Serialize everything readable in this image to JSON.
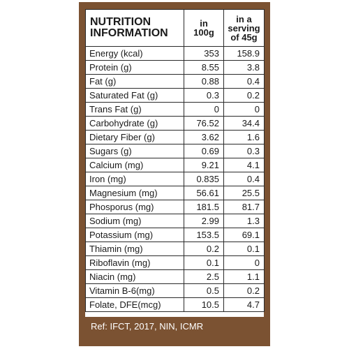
{
  "header": {
    "title_line1": "NUTRITION",
    "title_line2": "INFORMATION",
    "col1_line1": "in",
    "col1_line2": "100g",
    "col2_line1": "in a",
    "col2_line2": "serving",
    "col2_line3": "of 45g"
  },
  "rows": [
    {
      "name": "Energy (kcal)",
      "per100": "353",
      "serving": "158.9"
    },
    {
      "name": "Protein (g)",
      "per100": "8.55",
      "serving": "3.8"
    },
    {
      "name": "Fat (g)",
      "per100": "0.88",
      "serving": "0.4"
    },
    {
      "name": "Saturated Fat (g)",
      "per100": "0.3",
      "serving": "0.2"
    },
    {
      "name": "Trans Fat (g)",
      "per100": "0",
      "serving": "0"
    },
    {
      "name": "Carbohydrate (g)",
      "per100": "76.52",
      "serving": "34.4"
    },
    {
      "name": "Dietary Fiber (g)",
      "per100": "3.62",
      "serving": "1.6"
    },
    {
      "name": "Sugars (g)",
      "per100": "0.69",
      "serving": "0.3"
    },
    {
      "name": "Calcium (mg)",
      "per100": "9.21",
      "serving": "4.1"
    },
    {
      "name": "Iron (mg)",
      "per100": "0.835",
      "serving": "0.4"
    },
    {
      "name": "Magnesium (mg)",
      "per100": "56.61",
      "serving": "25.5"
    },
    {
      "name": "Phosporus (mg)",
      "per100": "181.5",
      "serving": "81.7"
    },
    {
      "name": "Sodium (mg)",
      "per100": "2.99",
      "serving": "1.3"
    },
    {
      "name": "Potassium (mg)",
      "per100": "153.5",
      "serving": "69.1"
    },
    {
      "name": "Thiamin (mg)",
      "per100": "0.2",
      "serving": "0.1"
    },
    {
      "name": "Riboflavin (mg)",
      "per100": "0.1",
      "serving": "0"
    },
    {
      "name": "Niacin (mg)",
      "per100": "2.5",
      "serving": "1.1"
    },
    {
      "name": "Vitamin B-6(mg)",
      "per100": "0.5",
      "serving": "0.2"
    },
    {
      "name": "Folate, DFE(mcg)",
      "per100": "10.5",
      "serving": "4.7"
    }
  ],
  "footer": {
    "reference": "Ref: IFCT, 2017, NIN, ICMR"
  },
  "colors": {
    "panel": "#7b5232",
    "table_bg": "#ffffff",
    "text": "#1a1a1a"
  }
}
